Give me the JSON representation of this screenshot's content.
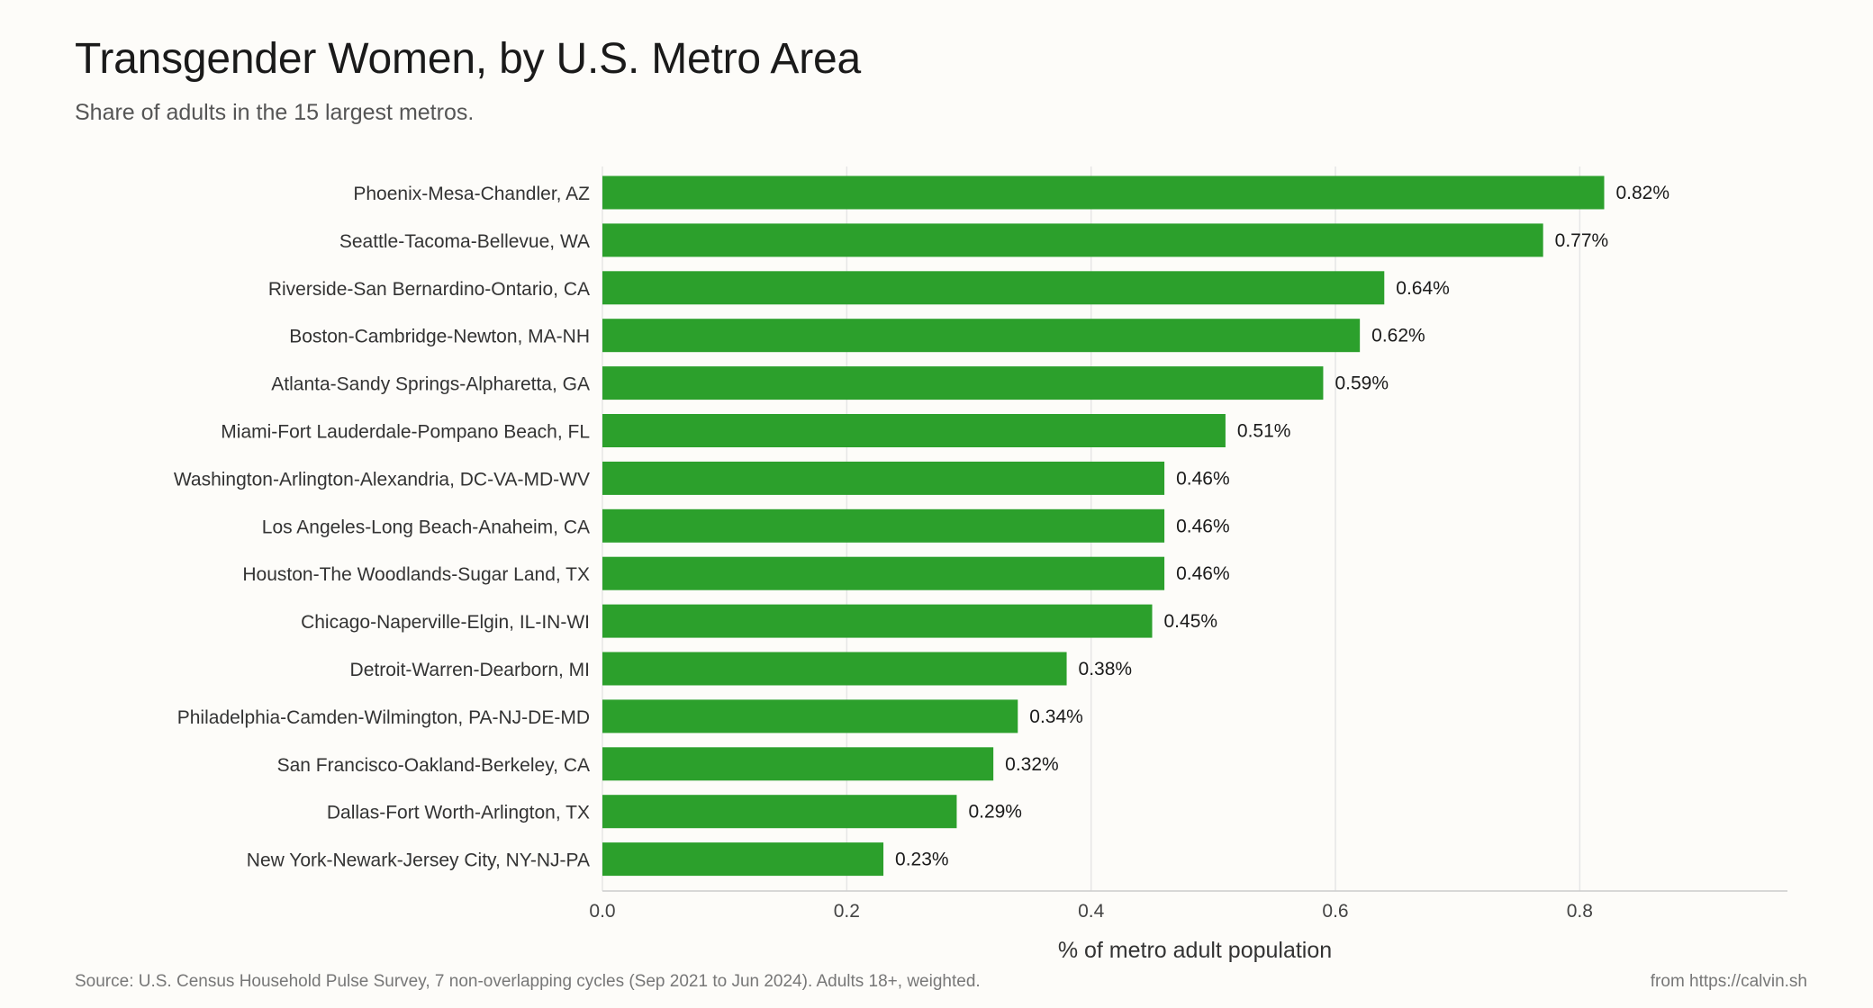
{
  "header": {
    "title": "Transgender Women, by U.S. Metro Area",
    "subtitle": "Share of adults in the 15 largest metros."
  },
  "footer": {
    "source": "Source: U.S. Census Household Pulse Survey, 7 non-overlapping cycles (Sep 2021 to Jun 2024). Adults 18+, weighted.",
    "credit": "from https://calvin.sh"
  },
  "chart_data": {
    "type": "bar",
    "orientation": "horizontal",
    "title": "Transgender Women, by U.S. Metro Area",
    "subtitle": "Share of adults in the 15 largest metros.",
    "xlabel": "% of metro adult population",
    "ylabel": "",
    "xlim": [
      0,
      0.97
    ],
    "xticks": [
      0.0,
      0.2,
      0.4,
      0.6,
      0.8
    ],
    "xtick_labels": [
      "0.0",
      "0.2",
      "0.4",
      "0.6",
      "0.8"
    ],
    "grid": "vertical",
    "bar_color": "#2ca02c",
    "categories": [
      "Phoenix-Mesa-Chandler, AZ",
      "Seattle-Tacoma-Bellevue, WA",
      "Riverside-San Bernardino-Ontario, CA",
      "Boston-Cambridge-Newton, MA-NH",
      "Atlanta-Sandy Springs-Alpharetta, GA",
      "Miami-Fort Lauderdale-Pompano Beach, FL",
      "Washington-Arlington-Alexandria, DC-VA-MD-WV",
      "Los Angeles-Long Beach-Anaheim, CA",
      "Houston-The Woodlands-Sugar Land, TX",
      "Chicago-Naperville-Elgin, IL-IN-WI",
      "Detroit-Warren-Dearborn, MI",
      "Philadelphia-Camden-Wilmington, PA-NJ-DE-MD",
      "San Francisco-Oakland-Berkeley, CA",
      "Dallas-Fort Worth-Arlington, TX",
      "New York-Newark-Jersey City, NY-NJ-PA"
    ],
    "values": [
      0.82,
      0.77,
      0.64,
      0.62,
      0.59,
      0.51,
      0.46,
      0.46,
      0.46,
      0.45,
      0.38,
      0.34,
      0.32,
      0.29,
      0.23
    ],
    "value_labels": [
      "0.82%",
      "0.77%",
      "0.64%",
      "0.62%",
      "0.59%",
      "0.51%",
      "0.46%",
      "0.46%",
      "0.46%",
      "0.45%",
      "0.38%",
      "0.34%",
      "0.32%",
      "0.29%",
      "0.23%"
    ]
  }
}
